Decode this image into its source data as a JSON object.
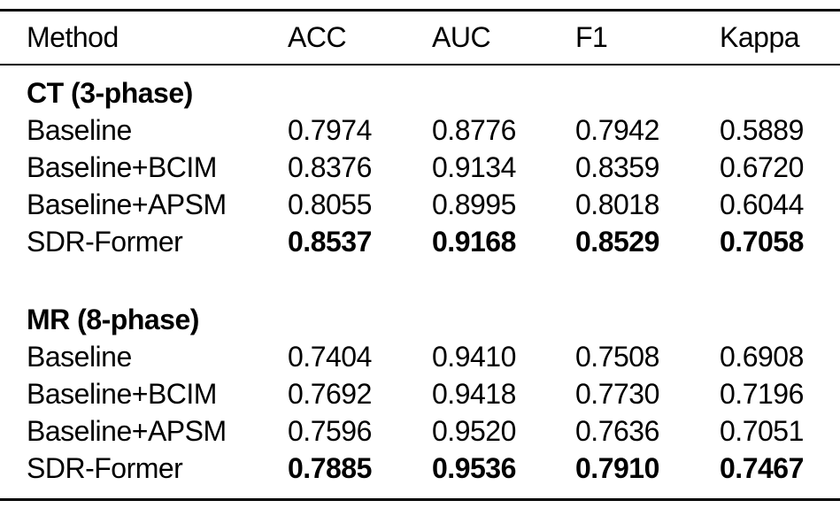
{
  "chart_data": {
    "type": "table",
    "columns": [
      "Method",
      "ACC",
      "AUC",
      "F1",
      "Kappa"
    ],
    "sections": [
      {
        "title": "CT (3-phase)",
        "rows": [
          {
            "method": "Baseline",
            "acc": "0.7974",
            "auc": "0.8776",
            "f1": "0.7942",
            "kappa": "0.5889",
            "bold": false
          },
          {
            "method": "Baseline+BCIM",
            "acc": "0.8376",
            "auc": "0.9134",
            "f1": "0.8359",
            "kappa": "0.6720",
            "bold": false
          },
          {
            "method": "Baseline+APSM",
            "acc": "0.8055",
            "auc": "0.8995",
            "f1": "0.8018",
            "kappa": "0.6044",
            "bold": false
          },
          {
            "method": "SDR-Former",
            "acc": "0.8537",
            "auc": "0.9168",
            "f1": "0.8529",
            "kappa": "0.7058",
            "bold": true
          }
        ]
      },
      {
        "title": "MR (8-phase)",
        "rows": [
          {
            "method": "Baseline",
            "acc": "0.7404",
            "auc": "0.9410",
            "f1": "0.7508",
            "kappa": "0.6908",
            "bold": false
          },
          {
            "method": "Baseline+BCIM",
            "acc": "0.7692",
            "auc": "0.9418",
            "f1": "0.7730",
            "kappa": "0.7196",
            "bold": false
          },
          {
            "method": "Baseline+APSM",
            "acc": "0.7596",
            "auc": "0.9520",
            "f1": "0.7636",
            "kappa": "0.7051",
            "bold": false
          },
          {
            "method": "SDR-Former",
            "acc": "0.7885",
            "auc": "0.9536",
            "f1": "0.7910",
            "kappa": "0.7467",
            "bold": true
          }
        ]
      }
    ]
  },
  "colors": {
    "text": "#000000",
    "rule": "#000000",
    "background": "#ffffff"
  }
}
